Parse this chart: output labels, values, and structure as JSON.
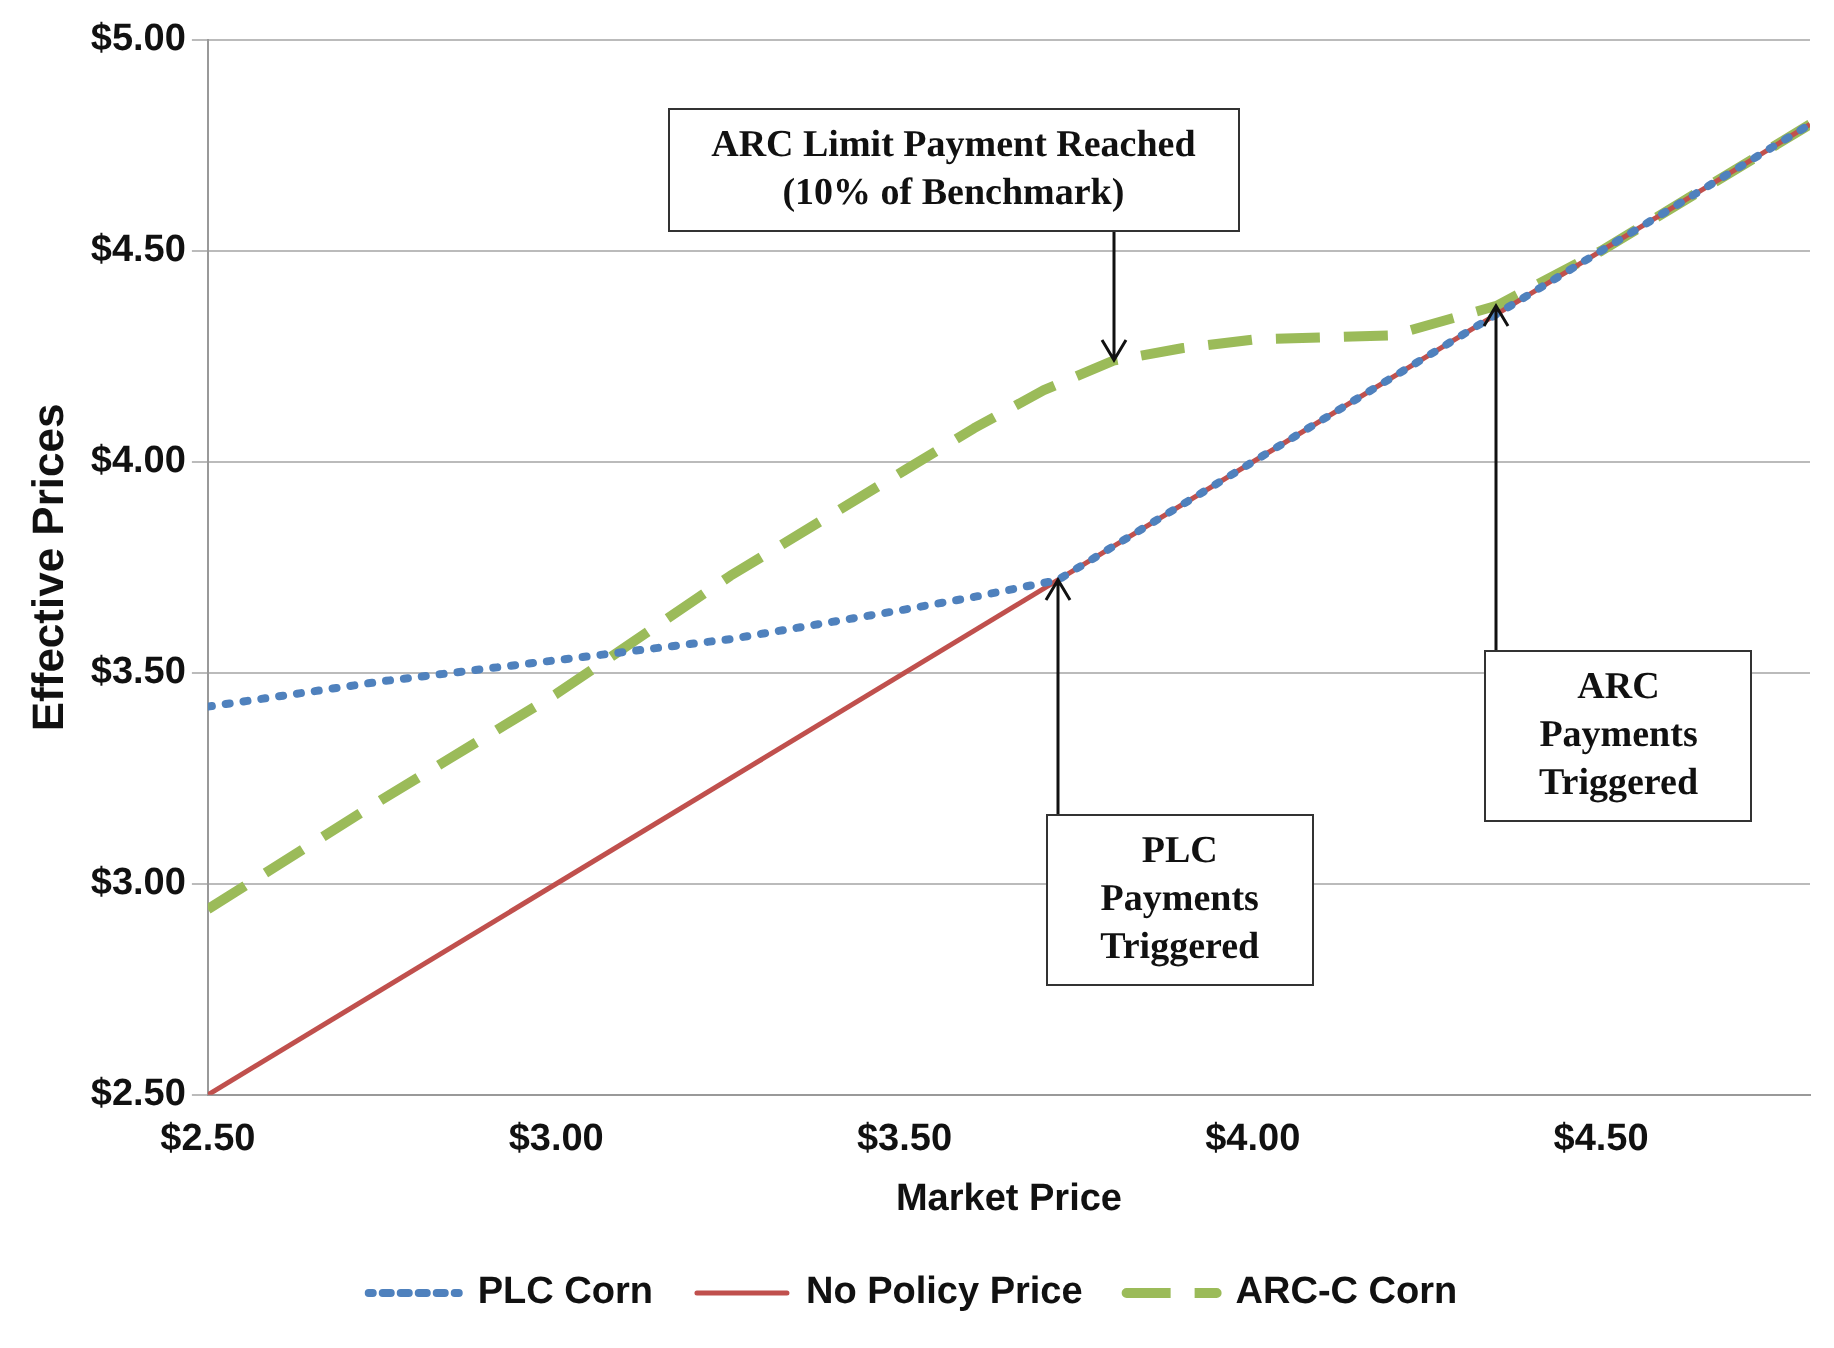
{
  "chart_data": {
    "type": "line",
    "xlabel": "Market Price",
    "ylabel": "Effective Prices",
    "xlim": [
      2.5,
      4.8
    ],
    "ylim": [
      2.5,
      5.0
    ],
    "xticks": [
      {
        "value": 2.5,
        "label": "$2.50"
      },
      {
        "value": 3.0,
        "label": "$3.00"
      },
      {
        "value": 3.5,
        "label": "$3.50"
      },
      {
        "value": 4.0,
        "label": "$4.00"
      },
      {
        "value": 4.5,
        "label": "$4.50"
      }
    ],
    "yticks": [
      {
        "value": 2.5,
        "label": "$2.50"
      },
      {
        "value": 3.0,
        "label": "$3.00"
      },
      {
        "value": 3.5,
        "label": "$3.50"
      },
      {
        "value": 4.0,
        "label": "$4.00"
      },
      {
        "value": 4.5,
        "label": "$4.50"
      },
      {
        "value": 5.0,
        "label": "$5.00"
      }
    ],
    "grid": "y",
    "legend": "bottom",
    "marker": "none",
    "series": [
      {
        "name": "PLC Corn",
        "color": "#4f81bd",
        "line_style": "dotted",
        "x": [
          2.5,
          2.75,
          3.0,
          3.25,
          3.5,
          3.6,
          3.72,
          3.8,
          4.0,
          4.5,
          4.8
        ],
        "values": [
          3.42,
          3.48,
          3.53,
          3.58,
          3.65,
          3.68,
          3.72,
          3.8,
          4.0,
          4.5,
          4.8
        ]
      },
      {
        "name": "No Policy Price",
        "color": "#c0504d",
        "line_style": "solid",
        "x": [
          2.5,
          4.8
        ],
        "values": [
          2.5,
          4.8
        ]
      },
      {
        "name": "ARC-C Corn",
        "color": "#9bbb59",
        "line_style": "dashed",
        "x": [
          2.5,
          2.75,
          3.0,
          3.25,
          3.5,
          3.6,
          3.7,
          3.8,
          3.9,
          4.0,
          4.2,
          4.35,
          4.5,
          4.8
        ],
        "values": [
          2.94,
          3.2,
          3.45,
          3.73,
          3.98,
          4.08,
          4.17,
          4.24,
          4.27,
          4.29,
          4.3,
          4.37,
          4.5,
          4.8
        ]
      }
    ],
    "annotations": [
      {
        "text": "ARC Limit Payment Reached (10% of Benchmark)",
        "x": 3.8,
        "y": 4.24
      },
      {
        "text": "PLC Payments Triggered",
        "x": 3.72,
        "y": 3.72
      },
      {
        "text": "ARC Payments Triggered",
        "x": 4.35,
        "y": 4.37
      }
    ]
  }
}
